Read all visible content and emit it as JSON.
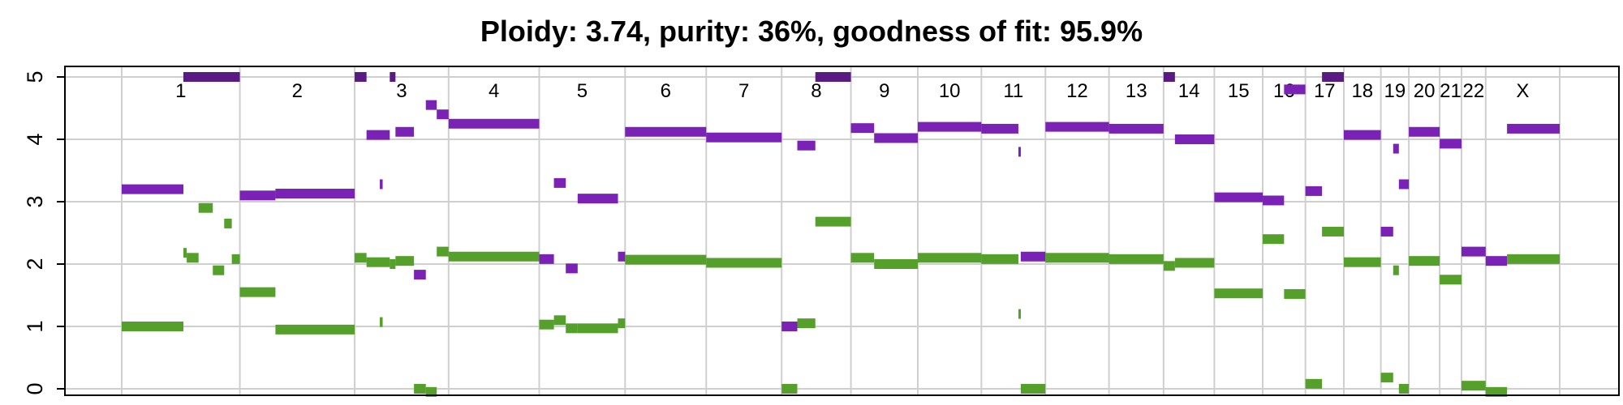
{
  "chart_data": {
    "type": "segment",
    "title": "Ploidy: 3.74, purity: 36%, goodness of fit: 95.9%",
    "ylim": [
      0,
      5
    ],
    "yticks": [
      "0",
      "1",
      "2",
      "3",
      "4",
      "5"
    ],
    "grid": true,
    "colors": {
      "major": "#7b22b6",
      "minor": "#55a02a",
      "major_clipped": "#5a1a84",
      "grid": "#cfcfcf"
    },
    "chromosomes": [
      {
        "label": "1",
        "start": 0,
        "end": 249
      },
      {
        "label": "2",
        "start": 249,
        "end": 491
      },
      {
        "label": "3",
        "start": 491,
        "end": 689
      },
      {
        "label": "4",
        "start": 689,
        "end": 880
      },
      {
        "label": "5",
        "start": 880,
        "end": 1061
      },
      {
        "label": "6",
        "start": 1061,
        "end": 1232
      },
      {
        "label": "7",
        "start": 1232,
        "end": 1391
      },
      {
        "label": "8",
        "start": 1391,
        "end": 1537
      },
      {
        "label": "9",
        "start": 1537,
        "end": 1678
      },
      {
        "label": "10",
        "start": 1678,
        "end": 1812
      },
      {
        "label": "11",
        "start": 1812,
        "end": 1947
      },
      {
        "label": "12",
        "start": 1947,
        "end": 2081
      },
      {
        "label": "13",
        "start": 2081,
        "end": 2196
      },
      {
        "label": "14",
        "start": 2196,
        "end": 2303
      },
      {
        "label": "15",
        "start": 2303,
        "end": 2405
      },
      {
        "label": "16",
        "start": 2405,
        "end": 2495
      },
      {
        "label": "17",
        "start": 2495,
        "end": 2576
      },
      {
        "label": "18",
        "start": 2576,
        "end": 2654
      },
      {
        "label": "19",
        "start": 2654,
        "end": 2713
      },
      {
        "label": "20",
        "start": 2713,
        "end": 2778
      },
      {
        "label": "21",
        "start": 2778,
        "end": 2824
      },
      {
        "label": "22",
        "start": 2824,
        "end": 2875
      },
      {
        "label": "X",
        "start": 2875,
        "end": 3031
      }
    ],
    "series": [
      {
        "role": "major",
        "segments": [
          {
            "x0": 0,
            "x1": 130,
            "y": 3.2
          },
          {
            "x0": 130,
            "x1": 249,
            "y": 5.0,
            "clipped": true
          },
          {
            "x0": 249,
            "x1": 324,
            "y": 3.1
          },
          {
            "x0": 324,
            "x1": 491,
            "y": 3.13
          },
          {
            "x0": 491,
            "x1": 516,
            "y": 5.0,
            "clipped": true
          },
          {
            "x0": 544,
            "x1": 550,
            "y": 3.28
          },
          {
            "x0": 565,
            "x1": 577,
            "y": 5.0,
            "clipped": true
          },
          {
            "x0": 516,
            "x1": 565,
            "y": 4.07
          },
          {
            "x0": 577,
            "x1": 616,
            "y": 4.12
          },
          {
            "x0": 616,
            "x1": 641,
            "y": 1.83
          },
          {
            "x0": 641,
            "x1": 664,
            "y": 4.55
          },
          {
            "x0": 664,
            "x1": 689,
            "y": 4.4
          },
          {
            "x0": 689,
            "x1": 880,
            "y": 4.25
          },
          {
            "x0": 880,
            "x1": 911,
            "y": 2.08
          },
          {
            "x0": 911,
            "x1": 936,
            "y": 3.3
          },
          {
            "x0": 936,
            "x1": 961,
            "y": 1.93
          },
          {
            "x0": 961,
            "x1": 1046,
            "y": 3.05
          },
          {
            "x0": 1046,
            "x1": 1061,
            "y": 2.12
          },
          {
            "x0": 1061,
            "x1": 1232,
            "y": 4.12
          },
          {
            "x0": 1232,
            "x1": 1391,
            "y": 4.03
          },
          {
            "x0": 1391,
            "x1": 1424,
            "y": 1.0
          },
          {
            "x0": 1424,
            "x1": 1462,
            "y": 3.9
          },
          {
            "x0": 1462,
            "x1": 1537,
            "y": 5.0,
            "clipped": true
          },
          {
            "x0": 1537,
            "x1": 1586,
            "y": 4.18
          },
          {
            "x0": 1586,
            "x1": 1678,
            "y": 4.02
          },
          {
            "x0": 1678,
            "x1": 1812,
            "y": 4.2
          },
          {
            "x0": 1812,
            "x1": 1890,
            "y": 4.17
          },
          {
            "x0": 1890,
            "x1": 1895,
            "y": 3.8
          },
          {
            "x0": 1895,
            "x1": 1947,
            "y": 2.12
          },
          {
            "x0": 1947,
            "x1": 2081,
            "y": 4.2
          },
          {
            "x0": 2081,
            "x1": 2196,
            "y": 4.17
          },
          {
            "x0": 2196,
            "x1": 2220,
            "y": 5.0,
            "clipped": true
          },
          {
            "x0": 2220,
            "x1": 2303,
            "y": 4.0
          },
          {
            "x0": 2303,
            "x1": 2405,
            "y": 3.07
          },
          {
            "x0": 2405,
            "x1": 2450,
            "y": 3.02
          },
          {
            "x0": 2450,
            "x1": 2495,
            "y": 4.8
          },
          {
            "x0": 2495,
            "x1": 2530,
            "y": 3.17
          },
          {
            "x0": 2530,
            "x1": 2576,
            "y": 5.0,
            "clipped": true
          },
          {
            "x0": 2576,
            "x1": 2654,
            "y": 4.07
          },
          {
            "x0": 2654,
            "x1": 2680,
            "y": 2.52
          },
          {
            "x0": 2680,
            "x1": 2692,
            "y": 3.85
          },
          {
            "x0": 2692,
            "x1": 2713,
            "y": 3.28
          },
          {
            "x0": 2713,
            "x1": 2778,
            "y": 4.12
          },
          {
            "x0": 2778,
            "x1": 2824,
            "y": 3.93
          },
          {
            "x0": 2824,
            "x1": 2875,
            "y": 2.2
          },
          {
            "x0": 2875,
            "x1": 2920,
            "y": 2.05
          },
          {
            "x0": 2920,
            "x1": 3031,
            "y": 4.17
          }
        ]
      },
      {
        "role": "minor",
        "segments": [
          {
            "x0": 0,
            "x1": 130,
            "y": 1.0
          },
          {
            "x0": 130,
            "x1": 137,
            "y": 2.18
          },
          {
            "x0": 137,
            "x1": 162,
            "y": 2.1
          },
          {
            "x0": 162,
            "x1": 192,
            "y": 2.9
          },
          {
            "x0": 192,
            "x1": 216,
            "y": 1.9
          },
          {
            "x0": 216,
            "x1": 232,
            "y": 2.65
          },
          {
            "x0": 232,
            "x1": 249,
            "y": 2.08
          },
          {
            "x0": 249,
            "x1": 324,
            "y": 1.55
          },
          {
            "x0": 324,
            "x1": 491,
            "y": 0.95
          },
          {
            "x0": 491,
            "x1": 516,
            "y": 2.1
          },
          {
            "x0": 516,
            "x1": 565,
            "y": 2.03
          },
          {
            "x0": 565,
            "x1": 577,
            "y": 2.0
          },
          {
            "x0": 544,
            "x1": 550,
            "y": 1.07
          },
          {
            "x0": 577,
            "x1": 616,
            "y": 2.05
          },
          {
            "x0": 616,
            "x1": 641,
            "y": 0.0
          },
          {
            "x0": 641,
            "x1": 664,
            "y": -0.05
          },
          {
            "x0": 664,
            "x1": 689,
            "y": 2.2
          },
          {
            "x0": 689,
            "x1": 880,
            "y": 2.12
          },
          {
            "x0": 880,
            "x1": 911,
            "y": 1.03
          },
          {
            "x0": 911,
            "x1": 936,
            "y": 1.1
          },
          {
            "x0": 936,
            "x1": 961,
            "y": 0.97
          },
          {
            "x0": 961,
            "x1": 1046,
            "y": 0.97
          },
          {
            "x0": 1046,
            "x1": 1061,
            "y": 1.05
          },
          {
            "x0": 1061,
            "x1": 1232,
            "y": 2.07
          },
          {
            "x0": 1232,
            "x1": 1391,
            "y": 2.02
          },
          {
            "x0": 1391,
            "x1": 1424,
            "y": 0.0
          },
          {
            "x0": 1424,
            "x1": 1462,
            "y": 1.05
          },
          {
            "x0": 1462,
            "x1": 1537,
            "y": 2.68
          },
          {
            "x0": 1537,
            "x1": 1586,
            "y": 2.1
          },
          {
            "x0": 1586,
            "x1": 1678,
            "y": 2.0
          },
          {
            "x0": 1678,
            "x1": 1812,
            "y": 2.1
          },
          {
            "x0": 1812,
            "x1": 1890,
            "y": 2.08
          },
          {
            "x0": 1890,
            "x1": 1895,
            "y": 1.2
          },
          {
            "x0": 1895,
            "x1": 1947,
            "y": 0.0
          },
          {
            "x0": 1947,
            "x1": 2081,
            "y": 2.1
          },
          {
            "x0": 2081,
            "x1": 2196,
            "y": 2.08
          },
          {
            "x0": 2196,
            "x1": 2220,
            "y": 1.97
          },
          {
            "x0": 2220,
            "x1": 2303,
            "y": 2.02
          },
          {
            "x0": 2303,
            "x1": 2405,
            "y": 1.53
          },
          {
            "x0": 2405,
            "x1": 2450,
            "y": 2.4
          },
          {
            "x0": 2450,
            "x1": 2495,
            "y": 1.52
          },
          {
            "x0": 2495,
            "x1": 2530,
            "y": 0.08
          },
          {
            "x0": 2530,
            "x1": 2576,
            "y": 2.52
          },
          {
            "x0": 2576,
            "x1": 2654,
            "y": 2.03
          },
          {
            "x0": 2654,
            "x1": 2680,
            "y": 0.18
          },
          {
            "x0": 2680,
            "x1": 2692,
            "y": 1.9
          },
          {
            "x0": 2692,
            "x1": 2713,
            "y": 0.0
          },
          {
            "x0": 2713,
            "x1": 2778,
            "y": 2.05
          },
          {
            "x0": 2778,
            "x1": 2824,
            "y": 1.75
          },
          {
            "x0": 2824,
            "x1": 2875,
            "y": 0.05
          },
          {
            "x0": 2875,
            "x1": 2920,
            "y": -0.05
          },
          {
            "x0": 2920,
            "x1": 3031,
            "y": 2.08
          }
        ]
      }
    ]
  }
}
